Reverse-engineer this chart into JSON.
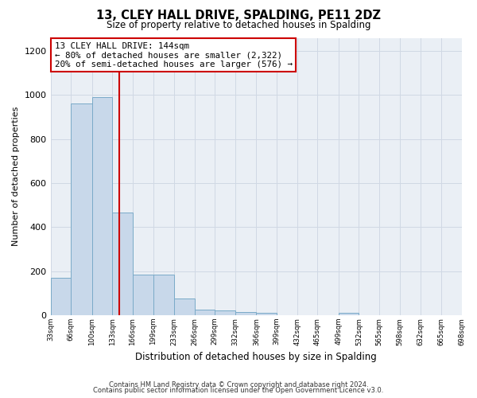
{
  "title": "13, CLEY HALL DRIVE, SPALDING, PE11 2DZ",
  "subtitle": "Size of property relative to detached houses in Spalding",
  "xlabel": "Distribution of detached houses by size in Spalding",
  "ylabel": "Number of detached properties",
  "footer_line1": "Contains HM Land Registry data © Crown copyright and database right 2024.",
  "footer_line2": "Contains public sector information licensed under the Open Government Licence v3.0.",
  "bin_edges": [
    33,
    66,
    100,
    133,
    166,
    199,
    233,
    266,
    299,
    332,
    366,
    399,
    432,
    465,
    499,
    532,
    565,
    598,
    632,
    665,
    698
  ],
  "bar_heights": [
    170,
    960,
    990,
    465,
    185,
    185,
    75,
    25,
    20,
    15,
    10,
    0,
    0,
    0,
    10,
    0,
    0,
    0,
    0,
    0
  ],
  "bar_color": "#c8d8ea",
  "bar_edge_color": "#7aaac8",
  "property_size": 144,
  "annotation_line1": "13 CLEY HALL DRIVE: 144sqm",
  "annotation_line2": "← 80% of detached houses are smaller (2,322)",
  "annotation_line3": "20% of semi-detached houses are larger (576) →",
  "annotation_box_color": "#ffffff",
  "annotation_border_color": "#cc0000",
  "vline_color": "#cc0000",
  "ylim": [
    0,
    1260
  ],
  "tick_labels": [
    "33sqm",
    "66sqm",
    "100sqm",
    "133sqm",
    "166sqm",
    "199sqm",
    "233sqm",
    "266sqm",
    "299sqm",
    "332sqm",
    "366sqm",
    "399sqm",
    "432sqm",
    "465sqm",
    "499sqm",
    "532sqm",
    "565sqm",
    "598sqm",
    "632sqm",
    "665sqm",
    "698sqm"
  ],
  "grid_color": "#d0d8e4",
  "background_color": "#eaeff5",
  "yticks": [
    0,
    200,
    400,
    600,
    800,
    1000,
    1200
  ]
}
